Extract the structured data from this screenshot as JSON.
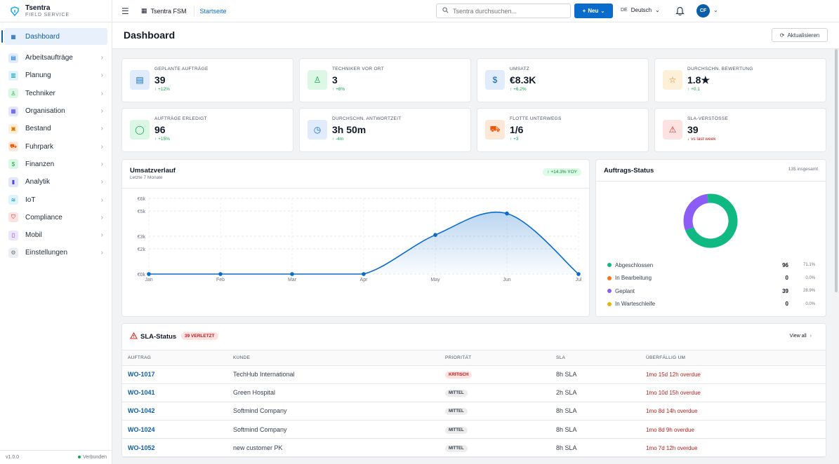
{
  "brand": {
    "name": "Tsentra",
    "sub": "FIELD SERVICE"
  },
  "sidebar": {
    "items": [
      {
        "label": "Dashboard",
        "icon": "grid-icon",
        "color": "#0b5ea8",
        "bg": "#e8f1fb"
      },
      {
        "label": "Arbeitsaufträge",
        "icon": "clipboard-icon",
        "color": "#0b6bcb",
        "bg": "#e0ecfb"
      },
      {
        "label": "Planung",
        "icon": "calendar-icon",
        "color": "#0891b2",
        "bg": "#dff4fa"
      },
      {
        "label": "Techniker",
        "icon": "user-icon",
        "color": "#16a34a",
        "bg": "#dcf7e6"
      },
      {
        "label": "Organisation",
        "icon": "building-icon",
        "color": "#4f46e5",
        "bg": "#e6e6fb"
      },
      {
        "label": "Bestand",
        "icon": "box-icon",
        "color": "#d97706",
        "bg": "#fdf0d8"
      },
      {
        "label": "Fuhrpark",
        "icon": "truck-icon",
        "color": "#ea580c",
        "bg": "#fde7d6"
      },
      {
        "label": "Finanzen",
        "icon": "dollar-icon",
        "color": "#16a34a",
        "bg": "#dcf7e6"
      },
      {
        "label": "Analytik",
        "icon": "chart-icon",
        "color": "#4f46e5",
        "bg": "#e6e6fb"
      },
      {
        "label": "IoT",
        "icon": "wifi-icon",
        "color": "#0891b2",
        "bg": "#dff4fa"
      },
      {
        "label": "Compliance",
        "icon": "shield-icon",
        "color": "#dc2626",
        "bg": "#fde2e2"
      },
      {
        "label": "Mobil",
        "icon": "phone-icon",
        "color": "#7c3aed",
        "bg": "#efe4fd"
      },
      {
        "label": "Einstellungen",
        "icon": "gear-icon",
        "color": "#6b7280",
        "bg": "#eceef1"
      }
    ],
    "version": "v1.0.0",
    "status": "Verbunden"
  },
  "topbar": {
    "app": "Tsentra FSM",
    "home": "Startseite",
    "search_placeholder": "Tsentra durchsuchen...",
    "new_label": "Neu",
    "lang_code": "DE",
    "lang": "Deutsch",
    "avatar": "CF"
  },
  "page": {
    "title": "Dashboard",
    "refresh": "Aktualisieren"
  },
  "kpis": [
    {
      "label": "GEPLANTE AUFTRÄGE",
      "value": "39",
      "delta": "+12%",
      "icon": "clipboard-icon",
      "color": "#0b6bcb",
      "bg": "#e0ecfb",
      "up": true
    },
    {
      "label": "TECHNIKER VOR ORT",
      "value": "3",
      "delta": "+8%",
      "icon": "user-check-icon",
      "color": "#16a34a",
      "bg": "#dcf7e6",
      "up": true
    },
    {
      "label": "UMSATZ",
      "value": "€8.3K",
      "delta": "+6.2%",
      "icon": "dollar-icon",
      "color": "#0b5ea8",
      "bg": "#e0ecfb",
      "up": true
    },
    {
      "label": "DURCHSCHN. BEWERTUNG",
      "value": "1.8★",
      "delta": "+0.1",
      "icon": "star-icon",
      "color": "#d97706",
      "bg": "#fdf0d8",
      "up": true
    },
    {
      "label": "AUFTRÄGE ERLEDIGT",
      "value": "96",
      "delta": "+15%",
      "icon": "check-circle-icon",
      "color": "#16a34a",
      "bg": "#dcf7e6",
      "up": true
    },
    {
      "label": "DURCHSCHN. ANTWORTZEIT",
      "value": "3h 50m",
      "delta": "-4m",
      "icon": "clock-icon",
      "color": "#0b6bcb",
      "bg": "#e0ecfb",
      "up": true
    },
    {
      "label": "FLOTTE UNTERWEGS",
      "value": "1/6",
      "delta": "+3",
      "icon": "truck-icon",
      "color": "#ea580c",
      "bg": "#fde7d6",
      "up": true
    },
    {
      "label": "SLA-VERSTÖSSE",
      "value": "39",
      "delta": "vs last week",
      "icon": "alert-icon",
      "color": "#dc2626",
      "bg": "#fde2e2",
      "up": false
    }
  ],
  "revenue": {
    "title": "Umsatzverlauf",
    "subtitle": "Letzte 7 Monate",
    "badge": "+14.3% YOY"
  },
  "chart_data": {
    "type": "area",
    "categories": [
      "Jan",
      "Feb",
      "Mar",
      "Apr",
      "May",
      "Jun",
      "Jul"
    ],
    "series": [
      {
        "values": [
          0,
          0,
          0,
          0,
          3100,
          4800,
          0
        ]
      }
    ],
    "ylim": [
      0,
      6000
    ],
    "yticks": [
      "€0k",
      "€2k",
      "€3k",
      "€5k",
      "€6k"
    ],
    "ytick_values": [
      0,
      2000,
      3000,
      5000,
      6000
    ],
    "grid": true,
    "color": "#0b6bcb"
  },
  "status": {
    "title": "Auftrags-Status",
    "total": "135 insgesamt",
    "items": [
      {
        "name": "Abgeschlossen",
        "count": "96",
        "pct": "71.1%",
        "value": 96,
        "color": "#10b981"
      },
      {
        "name": "In Bearbeitung",
        "count": "0",
        "pct": "0.0%",
        "value": 0,
        "color": "#f97316"
      },
      {
        "name": "Geplant",
        "count": "39",
        "pct": "28.9%",
        "value": 39,
        "color": "#8b5cf6"
      },
      {
        "name": "In Warteschleife",
        "count": "0",
        "pct": "0.0%",
        "value": 0,
        "color": "#eab308"
      }
    ]
  },
  "sla": {
    "title": "SLA-Status",
    "badge": "39 VERLETZT",
    "view_all": "View all",
    "columns": [
      "AUFTRAG",
      "KUNDE",
      "PRIORITÄT",
      "SLA",
      "ÜBERFÄLLIG UM"
    ],
    "rows": [
      {
        "id": "WO-1017",
        "customer": "TechHub International",
        "priority": "KRITISCH",
        "critical": true,
        "sla": "8h SLA",
        "overdue": "1mo 15d 12h overdue"
      },
      {
        "id": "WO-1041",
        "customer": "Green Hospital",
        "priority": "MITTEL",
        "critical": false,
        "sla": "2h SLA",
        "overdue": "1mo 10d 15h overdue"
      },
      {
        "id": "WO-1042",
        "customer": "Softmind Company",
        "priority": "MITTEL",
        "critical": false,
        "sla": "8h SLA",
        "overdue": "1mo 8d 14h overdue"
      },
      {
        "id": "WO-1024",
        "customer": "Softmind Company",
        "priority": "MITTEL",
        "critical": false,
        "sla": "8h SLA",
        "overdue": "1mo 8d 9h overdue"
      },
      {
        "id": "WO-1052",
        "customer": "new customer PK",
        "priority": "MITTEL",
        "critical": false,
        "sla": "8h SLA",
        "overdue": "1mo 7d 12h overdue"
      }
    ]
  }
}
